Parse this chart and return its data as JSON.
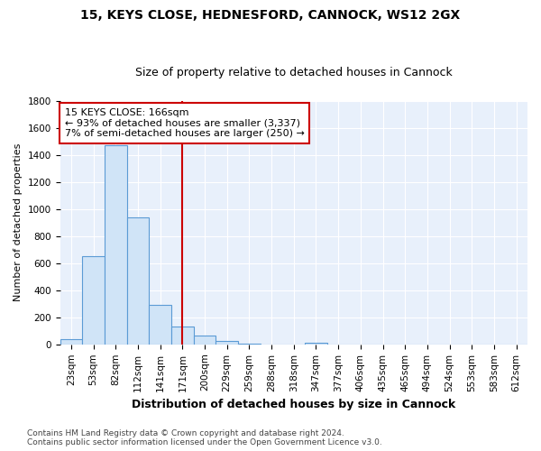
{
  "title": "15, KEYS CLOSE, HEDNESFORD, CANNOCK, WS12 2GX",
  "subtitle": "Size of property relative to detached houses in Cannock",
  "xlabel": "Distribution of detached houses by size in Cannock",
  "ylabel": "Number of detached properties",
  "categories": [
    "23sqm",
    "53sqm",
    "82sqm",
    "112sqm",
    "141sqm",
    "171sqm",
    "200sqm",
    "229sqm",
    "259sqm",
    "288sqm",
    "318sqm",
    "347sqm",
    "377sqm",
    "406sqm",
    "435sqm",
    "465sqm",
    "494sqm",
    "524sqm",
    "553sqm",
    "583sqm",
    "612sqm"
  ],
  "values": [
    40,
    650,
    1470,
    940,
    295,
    130,
    65,
    25,
    8,
    0,
    0,
    15,
    0,
    0,
    0,
    0,
    0,
    0,
    0,
    0,
    0
  ],
  "bar_color": "#d0e4f7",
  "bar_edge_color": "#5b9bd5",
  "vline_index": 5,
  "vline_color": "#cc0000",
  "annotation_text": "15 KEYS CLOSE: 166sqm\n← 93% of detached houses are smaller (3,337)\n7% of semi-detached houses are larger (250) →",
  "annotation_box_color": "white",
  "annotation_box_edge": "#cc0000",
  "ylim": [
    0,
    1800
  ],
  "yticks": [
    0,
    200,
    400,
    600,
    800,
    1000,
    1200,
    1400,
    1600,
    1800
  ],
  "footer": "Contains HM Land Registry data © Crown copyright and database right 2024.\nContains public sector information licensed under the Open Government Licence v3.0.",
  "bg_color": "#ffffff",
  "plot_bg_color": "#e8f0fb",
  "grid_color": "#ffffff",
  "title_fontsize": 10,
  "subtitle_fontsize": 9,
  "xlabel_fontsize": 9,
  "ylabel_fontsize": 8,
  "tick_fontsize": 7.5,
  "footer_fontsize": 6.5,
  "annotation_fontsize": 8
}
